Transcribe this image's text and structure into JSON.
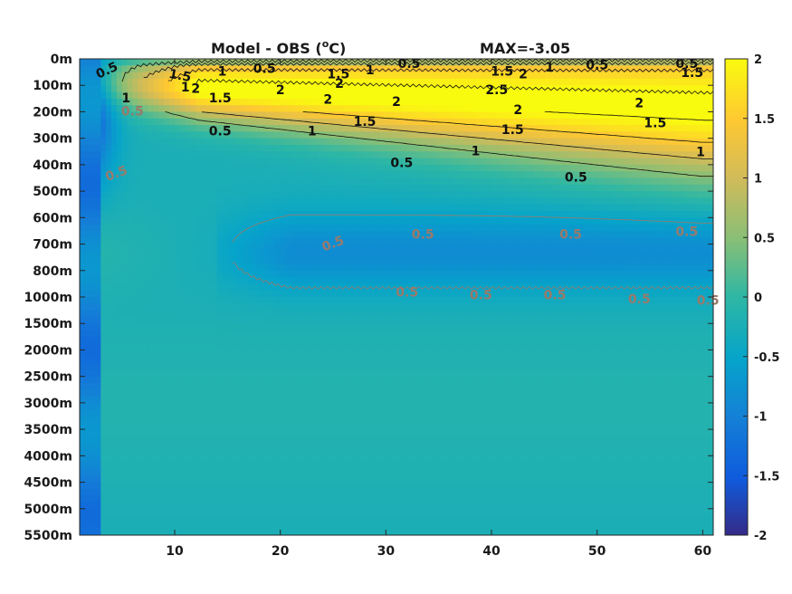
{
  "chart_data": {
    "type": "heatmap",
    "title": "Model - OBS (",
    "title_superscript": "o",
    "title_unit": "C)",
    "annotation": "MAX=-3.05",
    "xlabel": "",
    "ylabel": "",
    "xlim": [
      1,
      61
    ],
    "x_ticks": [
      {
        "value": 10,
        "label": "10"
      },
      {
        "value": 20,
        "label": "20"
      },
      {
        "value": 30,
        "label": "30"
      },
      {
        "value": 40,
        "label": "40"
      },
      {
        "value": 50,
        "label": "50"
      },
      {
        "value": 60,
        "label": "60"
      }
    ],
    "y_ticks": [
      "0m",
      "100m",
      "200m",
      "300m",
      "400m",
      "500m",
      "600m",
      "700m",
      "800m",
      "1000m",
      "1500m",
      "2000m",
      "2500m",
      "3000m",
      "3500m",
      "4000m",
      "4500m",
      "5000m",
      "5500m"
    ],
    "y_scale": "non-uniform depth levels (top to bottom)",
    "colorbar": {
      "colormap": "parula",
      "range": [
        -2,
        2
      ],
      "ticks": [
        {
          "value": 2,
          "label": "2"
        },
        {
          "value": 1.5,
          "label": "1.5"
        },
        {
          "value": 1,
          "label": "1"
        },
        {
          "value": 0.5,
          "label": "0.5"
        },
        {
          "value": 0,
          "label": "0"
        },
        {
          "value": -0.5,
          "label": "-0.5"
        },
        {
          "value": -1,
          "label": "-1"
        },
        {
          "value": -1.5,
          "label": "-1.5"
        },
        {
          "value": -2,
          "label": "-2"
        }
      ],
      "location": "right"
    },
    "contour_levels_positive": [
      0.5,
      1,
      1.5,
      2,
      2.5
    ],
    "contour_levels_negative": [
      -0.5
    ],
    "contour_labels": [
      {
        "text": "0.5",
        "x": 3.6,
        "y": 0.45,
        "rot": -25,
        "sign": "pos"
      },
      {
        "text": "1.5",
        "x": 10.5,
        "y": 0.65,
        "rot": 10,
        "sign": "pos"
      },
      {
        "text": "1",
        "x": 14.5,
        "y": 0.5,
        "rot": 0,
        "sign": "pos"
      },
      {
        "text": "0.5",
        "x": 18.5,
        "y": 0.4,
        "rot": 0,
        "sign": "pos"
      },
      {
        "text": "1",
        "x": 11,
        "y": 1.1,
        "rot": 0,
        "sign": "pos"
      },
      {
        "text": "2",
        "x": 12,
        "y": 1.15,
        "rot": 0,
        "sign": "pos"
      },
      {
        "text": "1",
        "x": 5.4,
        "y": 1.5,
        "rot": 0,
        "sign": "pos"
      },
      {
        "text": "1.5",
        "x": 14.3,
        "y": 1.5,
        "rot": 0,
        "sign": "pos"
      },
      {
        "text": "2",
        "x": 20,
        "y": 1.2,
        "rot": 0,
        "sign": "pos"
      },
      {
        "text": "1.5",
        "x": 25.5,
        "y": 0.6,
        "rot": 0,
        "sign": "pos"
      },
      {
        "text": "2",
        "x": 25.6,
        "y": 0.95,
        "rot": 0,
        "sign": "pos"
      },
      {
        "text": "1",
        "x": 28.5,
        "y": 0.45,
        "rot": 0,
        "sign": "pos"
      },
      {
        "text": "0.5",
        "x": 32.2,
        "y": 0.2,
        "rot": 0,
        "sign": "pos"
      },
      {
        "text": "2",
        "x": 24.5,
        "y": 1.55,
        "rot": 0,
        "sign": "pos"
      },
      {
        "text": "2",
        "x": 31,
        "y": 1.65,
        "rot": 0,
        "sign": "pos"
      },
      {
        "text": "1.5",
        "x": 28,
        "y": 2.4,
        "rot": 0,
        "sign": "pos"
      },
      {
        "text": "0.5",
        "x": 14.3,
        "y": 2.75,
        "rot": 0,
        "sign": "pos"
      },
      {
        "text": "1",
        "x": 23,
        "y": 2.75,
        "rot": 0,
        "sign": "pos"
      },
      {
        "text": "1.5",
        "x": 41,
        "y": 0.5,
        "rot": 0,
        "sign": "pos"
      },
      {
        "text": "2",
        "x": 43,
        "y": 0.6,
        "rot": 0,
        "sign": "pos"
      },
      {
        "text": "1",
        "x": 45.5,
        "y": 0.35,
        "rot": 0,
        "sign": "pos"
      },
      {
        "text": "0.5",
        "x": 50,
        "y": 0.25,
        "rot": 0,
        "sign": "pos"
      },
      {
        "text": "2.5",
        "x": 40.5,
        "y": 1.2,
        "rot": 0,
        "sign": "pos"
      },
      {
        "text": "2",
        "x": 42.5,
        "y": 1.95,
        "rot": 0,
        "sign": "pos"
      },
      {
        "text": "1.5",
        "x": 42,
        "y": 2.7,
        "rot": 0,
        "sign": "pos"
      },
      {
        "text": "1",
        "x": 38.5,
        "y": 3.5,
        "rot": 0,
        "sign": "pos"
      },
      {
        "text": "0.5",
        "x": 31.5,
        "y": 3.95,
        "rot": 0,
        "sign": "pos"
      },
      {
        "text": "0.5",
        "x": 48,
        "y": 4.5,
        "rot": 0,
        "sign": "pos"
      },
      {
        "text": "2",
        "x": 54,
        "y": 1.7,
        "rot": 0,
        "sign": "pos"
      },
      {
        "text": "1.5",
        "x": 55.5,
        "y": 2.45,
        "rot": 0,
        "sign": "pos"
      },
      {
        "text": "1",
        "x": 59.8,
        "y": 3.55,
        "rot": 0,
        "sign": "pos"
      },
      {
        "text": "0.5",
        "x": 58.5,
        "y": 0.2,
        "rot": 0,
        "sign": "pos"
      },
      {
        "text": "1.5",
        "x": 59,
        "y": 0.55,
        "rot": 0,
        "sign": "pos"
      },
      {
        "text": "0.5",
        "x": 6,
        "y": 2.0,
        "rot": 0,
        "sign": "neg"
      },
      {
        "text": "0.5",
        "x": 4.5,
        "y": 4.35,
        "rot": -20,
        "sign": "neg"
      },
      {
        "text": "0.5",
        "x": 25,
        "y": 7.0,
        "rot": -20,
        "sign": "neg"
      },
      {
        "text": "0.5",
        "x": 33.5,
        "y": 6.65,
        "rot": 0,
        "sign": "neg"
      },
      {
        "text": "0.5",
        "x": 47.5,
        "y": 6.65,
        "rot": 0,
        "sign": "neg"
      },
      {
        "text": "0.5",
        "x": 58.5,
        "y": 6.55,
        "rot": 0,
        "sign": "neg"
      },
      {
        "text": "0.5",
        "x": 32,
        "y": 8.85,
        "rot": 0,
        "sign": "neg"
      },
      {
        "text": "0.5",
        "x": 39,
        "y": 8.95,
        "rot": 0,
        "sign": "neg"
      },
      {
        "text": "0.5",
        "x": 46,
        "y": 8.95,
        "rot": 0,
        "sign": "neg"
      },
      {
        "text": "0.5",
        "x": 54,
        "y": 9.1,
        "rot": 0,
        "sign": "neg"
      },
      {
        "text": "0.5",
        "x": 60.5,
        "y": 9.15,
        "rot": 0,
        "sign": "neg"
      }
    ],
    "grid": false,
    "legend": "none"
  }
}
